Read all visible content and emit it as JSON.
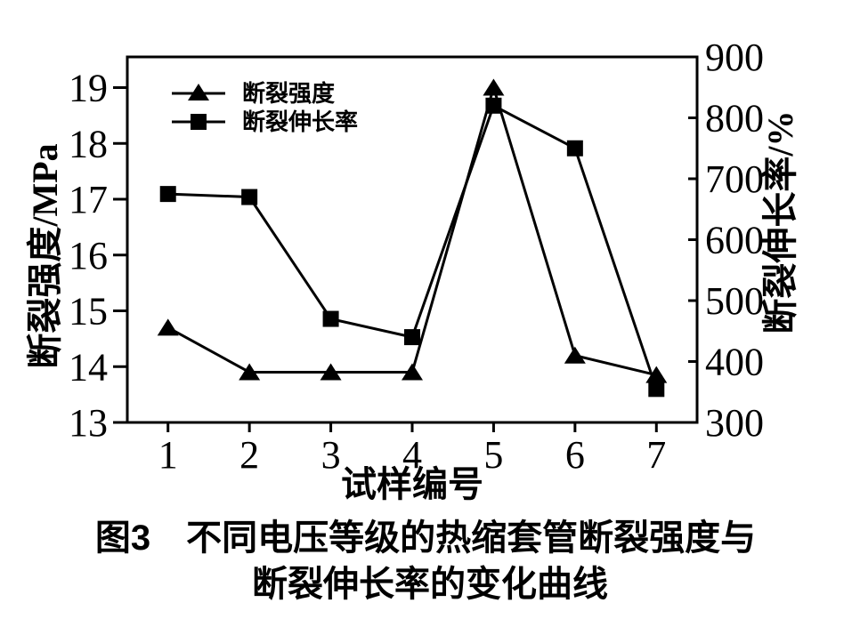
{
  "figure": {
    "caption_line1": "图3　不同电压等级的热缩套管断裂强度与",
    "caption_line2": "断裂伸长率的变化曲线"
  },
  "chart_data": {
    "type": "line",
    "title": "图3 不同电压等级的热缩套管断裂强度与断裂伸长率的变化曲线",
    "x": [
      1,
      2,
      3,
      4,
      5,
      6,
      7
    ],
    "x_tick_labels": [
      "1",
      "2",
      "3",
      "4",
      "5",
      "6",
      "7"
    ],
    "xlabel": "试样编号",
    "left_axis": {
      "label": "断裂强度/MPa",
      "ticks": [
        13,
        14,
        15,
        16,
        17,
        18,
        19
      ],
      "ylim": [
        13,
        19.55
      ]
    },
    "right_axis": {
      "label": "断裂伸长率/%",
      "ticks": [
        300,
        400,
        500,
        600,
        700,
        800,
        900
      ],
      "ylim": [
        300,
        900
      ]
    },
    "series": [
      {
        "name": "断裂强度",
        "axis": "left",
        "marker": "triangle",
        "color": "#000000",
        "values": [
          14.7,
          13.9,
          13.9,
          13.9,
          19.0,
          14.2,
          13.85
        ]
      },
      {
        "name": "断裂伸长率",
        "axis": "right",
        "marker": "square",
        "color": "#000000",
        "values": [
          675,
          670,
          470,
          440,
          820,
          750,
          355
        ]
      }
    ],
    "legend": {
      "position": "upper-left",
      "items": [
        "断裂强度",
        "断裂伸长率"
      ]
    },
    "grid": false,
    "line_color": "#000000",
    "background": "#ffffff"
  }
}
